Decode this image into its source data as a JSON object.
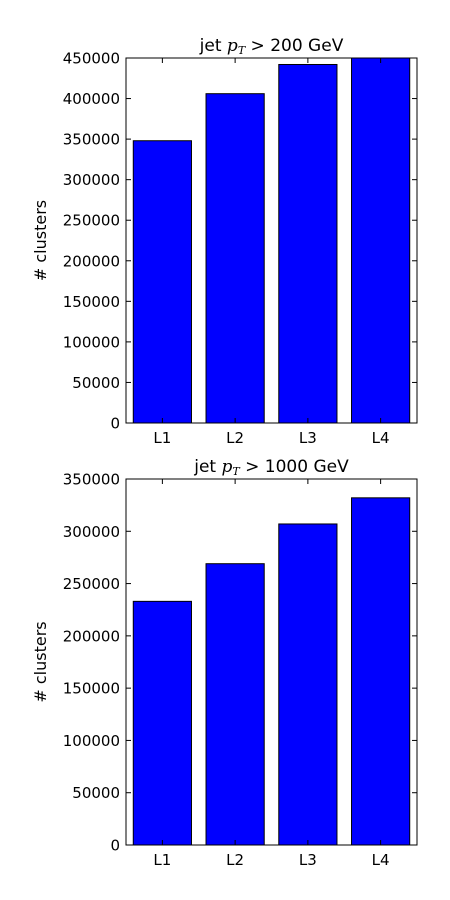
{
  "chart_data": [
    {
      "type": "bar",
      "title": {
        "prefix": "jet ",
        "var": "p",
        "sub": "T",
        "suffix": " > 200 GeV"
      },
      "ylabel": "# clusters",
      "xlabel": "",
      "categories": [
        "L1",
        "L2",
        "L3",
        "L4"
      ],
      "values": [
        348000,
        406000,
        442000,
        450000
      ],
      "ylim": [
        0,
        450000
      ],
      "yticks": [
        0,
        50000,
        100000,
        150000,
        200000,
        250000,
        300000,
        350000,
        400000,
        450000
      ],
      "bar_color": "#0000ff",
      "edge_color": "#000000",
      "grid": false,
      "legend": "none"
    },
    {
      "type": "bar",
      "title": {
        "prefix": "jet ",
        "var": "p",
        "sub": "T",
        "suffix": " > 1000 GeV"
      },
      "ylabel": "# clusters",
      "xlabel": "",
      "categories": [
        "L1",
        "L2",
        "L3",
        "L4"
      ],
      "values": [
        233000,
        269000,
        307000,
        332000
      ],
      "ylim": [
        0,
        350000
      ],
      "yticks": [
        0,
        50000,
        100000,
        150000,
        200000,
        250000,
        300000,
        350000
      ],
      "bar_color": "#0000ff",
      "edge_color": "#000000",
      "grid": false,
      "legend": "none"
    }
  ]
}
